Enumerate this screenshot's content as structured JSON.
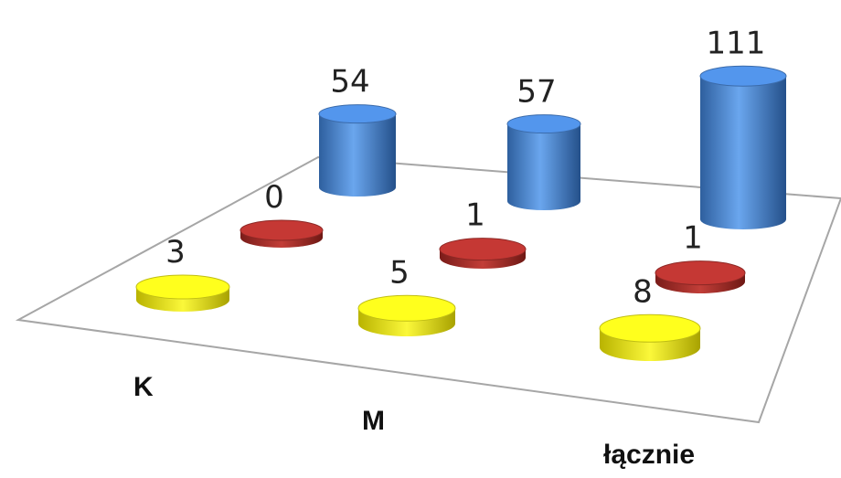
{
  "chart_data": {
    "type": "bar",
    "style": "3d-cylinder",
    "categories": [
      "K",
      "M",
      "łącznie"
    ],
    "series": [
      {
        "values": [
          54,
          57,
          111
        ],
        "color": "#4a86d4"
      },
      {
        "values": [
          0,
          1,
          1
        ],
        "color": "#b0322e"
      },
      {
        "values": [
          3,
          5,
          8
        ],
        "color": "#f0ee1a"
      }
    ],
    "grid": false,
    "legend": "none"
  }
}
